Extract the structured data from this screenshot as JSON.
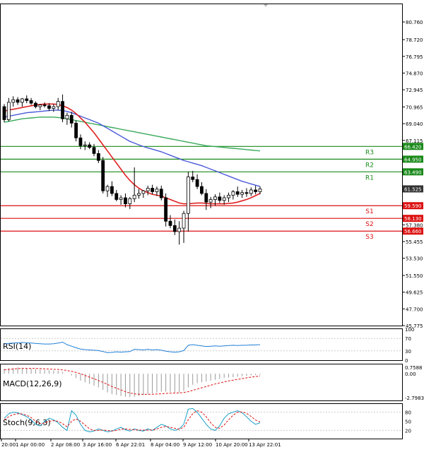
{
  "main_chart": {
    "y_min": 45.775,
    "y_max": 82.8,
    "y_ticks": [
      "80.760",
      "78.720",
      "76.795",
      "74.870",
      "72.945",
      "70.965",
      "69.040",
      "67.115",
      "65.190",
      "63.490",
      "61.525",
      "59.590",
      "57.380",
      "55.455",
      "53.530",
      "51.550",
      "49.625",
      "47.700",
      "45.775"
    ],
    "last_price": {
      "value": 61.525,
      "label": "61.525",
      "color": "#333333"
    },
    "levels": [
      {
        "name": "R3",
        "value": 66.42,
        "label": "66.420",
        "color": "#1a8a1a"
      },
      {
        "name": "R2",
        "value": 64.95,
        "label": "64.950",
        "color": "#1a8a1a"
      },
      {
        "name": "R1",
        "value": 63.49,
        "label": "63.490",
        "color": "#1a8a1a"
      },
      {
        "name": "S1",
        "value": 59.59,
        "label": "59.590",
        "color": "#dd1111"
      },
      {
        "name": "S2",
        "value": 58.13,
        "label": "58.130",
        "color": "#dd1111"
      },
      {
        "name": "S3",
        "value": 56.66,
        "label": "56.660",
        "color": "#dd1111"
      }
    ],
    "candles": [
      [
        71.0,
        71.3,
        69.2,
        69.5
      ],
      [
        69.5,
        72.0,
        69.3,
        71.5
      ],
      [
        71.5,
        72.2,
        71.0,
        71.8
      ],
      [
        71.8,
        72.1,
        71.2,
        71.5
      ],
      [
        71.5,
        72.0,
        71.0,
        71.9
      ],
      [
        71.9,
        72.3,
        71.4,
        71.7
      ],
      [
        71.7,
        72.0,
        71.2,
        71.4
      ],
      [
        71.4,
        71.6,
        70.8,
        71.0
      ],
      [
        71.0,
        71.3,
        70.6,
        71.2
      ],
      [
        71.2,
        71.5,
        70.9,
        71.1
      ],
      [
        71.1,
        71.4,
        70.5,
        70.8
      ],
      [
        70.8,
        71.3,
        70.4,
        71.0
      ],
      [
        71.0,
        72.0,
        70.6,
        71.6
      ],
      [
        71.6,
        72.4,
        69.2,
        69.6
      ],
      [
        69.6,
        70.3,
        68.9,
        70.0
      ],
      [
        70.0,
        70.4,
        68.6,
        69.1
      ],
      [
        69.1,
        69.4,
        67.0,
        67.4
      ],
      [
        67.4,
        67.8,
        66.1,
        66.5
      ],
      [
        66.5,
        67.0,
        66.0,
        66.6
      ],
      [
        66.6,
        66.9,
        66.1,
        66.3
      ],
      [
        66.3,
        66.7,
        65.3,
        65.6
      ],
      [
        65.6,
        66.0,
        64.5,
        64.8
      ],
      [
        64.8,
        65.2,
        61.0,
        61.3
      ],
      [
        61.3,
        62.0,
        60.6,
        61.8
      ],
      [
        61.8,
        62.4,
        60.7,
        61.0
      ],
      [
        61.0,
        61.4,
        60.1,
        60.3
      ],
      [
        60.3,
        60.8,
        59.7,
        60.5
      ],
      [
        60.5,
        61.0,
        59.4,
        59.8
      ],
      [
        59.8,
        60.6,
        59.2,
        60.4
      ],
      [
        60.4,
        64.0,
        60.0,
        60.8
      ],
      [
        60.8,
        61.5,
        60.4,
        61.0
      ],
      [
        61.0,
        61.4,
        60.5,
        61.3
      ],
      [
        61.3,
        61.9,
        60.8,
        61.6
      ],
      [
        61.6,
        62.0,
        60.9,
        61.2
      ],
      [
        61.2,
        61.8,
        60.7,
        61.5
      ],
      [
        61.5,
        61.9,
        60.2,
        60.5
      ],
      [
        60.5,
        61.0,
        57.2,
        57.8
      ],
      [
        57.8,
        58.5,
        57.0,
        57.3
      ],
      [
        57.3,
        58.0,
        56.2,
        56.6
      ],
      [
        56.6,
        57.8,
        55.1,
        57.0
      ],
      [
        57.0,
        59.0,
        55.3,
        58.7
      ],
      [
        58.7,
        63.5,
        56.6,
        62.9
      ],
      [
        62.9,
        63.6,
        62.3,
        62.6
      ],
      [
        62.6,
        63.2,
        61.5,
        61.8
      ],
      [
        61.8,
        62.3,
        60.8,
        61.0
      ],
      [
        61.0,
        61.5,
        59.1,
        60.0
      ],
      [
        60.0,
        60.6,
        59.3,
        60.3
      ],
      [
        60.3,
        60.9,
        59.6,
        60.6
      ],
      [
        60.6,
        61.1,
        59.9,
        60.2
      ],
      [
        60.2,
        60.8,
        59.7,
        60.5
      ],
      [
        60.5,
        61.1,
        60.0,
        60.8
      ],
      [
        60.8,
        61.4,
        60.3,
        61.2
      ],
      [
        61.2,
        61.8,
        60.6,
        60.9
      ],
      [
        60.9,
        61.4,
        60.5,
        61.1
      ],
      [
        61.1,
        61.6,
        60.6,
        61.0
      ],
      [
        61.0,
        61.7,
        60.7,
        61.4
      ],
      [
        61.4,
        61.9,
        60.9,
        61.2
      ],
      [
        61.2,
        61.8,
        60.9,
        61.525
      ]
    ],
    "ma_blue": [
      69.8,
      69.9,
      70.0,
      70.1,
      70.2,
      70.3,
      70.35,
      70.4,
      70.45,
      70.5,
      70.55,
      70.6,
      70.6,
      70.55,
      70.45,
      70.3,
      70.1,
      69.9,
      69.7,
      69.5,
      69.3,
      69.1,
      68.8,
      68.5,
      68.2,
      67.9,
      67.6,
      67.3,
      67.0,
      66.8,
      66.6,
      66.4,
      66.25,
      66.1,
      65.95,
      65.8,
      65.6,
      65.4,
      65.2,
      65.0,
      64.8,
      64.65,
      64.5,
      64.35,
      64.2,
      64.0,
      63.8,
      63.6,
      63.4,
      63.2,
      63.0,
      62.8,
      62.6,
      62.4,
      62.25,
      62.1,
      61.95,
      61.8
    ],
    "ma_green": [
      69.2,
      69.3,
      69.4,
      69.5,
      69.6,
      69.65,
      69.7,
      69.75,
      69.8,
      69.8,
      69.8,
      69.8,
      69.75,
      69.7,
      69.6,
      69.5,
      69.4,
      69.3,
      69.2,
      69.1,
      69.0,
      68.9,
      68.8,
      68.7,
      68.6,
      68.5,
      68.4,
      68.3,
      68.2,
      68.1,
      68.0,
      67.9,
      67.8,
      67.7,
      67.6,
      67.5,
      67.4,
      67.3,
      67.2,
      67.1,
      67.0,
      66.9,
      66.8,
      66.7,
      66.6,
      66.5,
      66.45,
      66.4,
      66.35,
      66.3,
      66.25,
      66.2,
      66.15,
      66.1,
      66.05,
      66.0,
      65.95,
      65.9
    ],
    "ma_red": [
      70.5,
      70.6,
      70.7,
      70.8,
      70.9,
      71.0,
      71.1,
      71.2,
      71.25,
      71.3,
      71.3,
      71.3,
      71.25,
      71.1,
      70.9,
      70.6,
      70.2,
      69.7,
      69.2,
      68.6,
      68.0,
      67.3,
      66.6,
      65.9,
      65.2,
      64.5,
      63.8,
      63.1,
      62.5,
      62.0,
      61.6,
      61.3,
      61.1,
      60.9,
      60.8,
      60.7,
      60.5,
      60.3,
      60.1,
      59.9,
      59.8,
      59.8,
      59.85,
      59.9,
      59.9,
      59.85,
      59.8,
      59.8,
      59.8,
      59.8,
      59.85,
      59.9,
      60.0,
      60.15,
      60.3,
      60.5,
      60.75,
      61.0
    ]
  },
  "x_axis": {
    "labels": [
      "20:00",
      "1 Apr 00:00",
      "2 Apr 08:00",
      "3 Apr 16:00",
      "6 Apr 22:01",
      "8 Apr 04:00",
      "9 Apr 12:00",
      "10 Apr 20:00",
      "13 Apr 22:01"
    ]
  },
  "rsi": {
    "name": "RSI(14)",
    "ticks": [
      "100",
      "70",
      "30",
      "0"
    ],
    "color": "#1e7fd6",
    "values": [
      52,
      54,
      55,
      56,
      57,
      56,
      55,
      54,
      53,
      52,
      52,
      53,
      55,
      58,
      50,
      45,
      40,
      36,
      34,
      33,
      32,
      31,
      28,
      24,
      25,
      27,
      26,
      27,
      28,
      35,
      34,
      33,
      35,
      33,
      34,
      32,
      29,
      27,
      26,
      27,
      31,
      48,
      50,
      48,
      46,
      44,
      45,
      46,
      45,
      46,
      47,
      48,
      47,
      48,
      48,
      49,
      49,
      50
    ]
  },
  "macd": {
    "name": "MACD(12,26,9)",
    "ticks": [
      "0.7588",
      "0.00",
      "-2.7983"
    ],
    "hist": [
      0.6,
      0.65,
      0.7,
      0.75,
      0.7,
      0.65,
      0.6,
      0.55,
      0.5,
      0.45,
      0.4,
      0.38,
      0.35,
      0.2,
      0.0,
      -0.2,
      -0.5,
      -0.8,
      -1.0,
      -1.2,
      -1.4,
      -1.6,
      -1.9,
      -2.2,
      -2.4,
      -2.5,
      -2.6,
      -2.7,
      -2.75,
      -2.7,
      -2.6,
      -2.5,
      -2.4,
      -2.3,
      -2.2,
      -2.1,
      -2.1,
      -2.15,
      -2.2,
      -2.2,
      -2.0,
      -1.6,
      -1.3,
      -1.1,
      -1.0,
      -0.9,
      -0.8,
      -0.7,
      -0.6,
      -0.5,
      -0.45,
      -0.4,
      -0.35,
      -0.3,
      -0.25,
      -0.2,
      -0.15,
      -0.1
    ],
    "signal": [
      0.45,
      0.5,
      0.55,
      0.6,
      0.62,
      0.63,
      0.63,
      0.62,
      0.6,
      0.58,
      0.55,
      0.52,
      0.5,
      0.45,
      0.38,
      0.28,
      0.15,
      0.0,
      -0.2,
      -0.4,
      -0.6,
      -0.8,
      -1.0,
      -1.25,
      -1.5,
      -1.7,
      -1.9,
      -2.1,
      -2.25,
      -2.35,
      -2.4,
      -2.42,
      -2.42,
      -2.4,
      -2.38,
      -2.35,
      -2.3,
      -2.28,
      -2.26,
      -2.25,
      -2.2,
      -2.1,
      -1.95,
      -1.8,
      -1.65,
      -1.5,
      -1.35,
      -1.2,
      -1.08,
      -0.95,
      -0.85,
      -0.75,
      -0.66,
      -0.57,
      -0.48,
      -0.4,
      -0.33,
      -0.26
    ],
    "signal_color": "#d11"
  },
  "stoch": {
    "name": "Stoch(9,6,3)",
    "ticks": [
      "80",
      "50",
      "20"
    ],
    "k_color": "#1aa0c8",
    "d_color": "#d11",
    "k": [
      60,
      75,
      80,
      78,
      72,
      65,
      55,
      40,
      35,
      50,
      60,
      55,
      45,
      30,
      20,
      85,
      70,
      40,
      20,
      15,
      18,
      25,
      20,
      15,
      18,
      25,
      30,
      22,
      18,
      25,
      20,
      18,
      25,
      20,
      30,
      40,
      35,
      25,
      20,
      25,
      40,
      90,
      92,
      80,
      60,
      40,
      25,
      20,
      35,
      60,
      75,
      80,
      85,
      78,
      65,
      50,
      40,
      45
    ],
    "d": [
      55,
      65,
      72,
      75,
      74,
      70,
      62,
      50,
      42,
      44,
      50,
      52,
      50,
      42,
      32,
      50,
      58,
      50,
      38,
      25,
      20,
      20,
      21,
      20,
      18,
      20,
      24,
      25,
      23,
      22,
      21,
      21,
      21,
      21,
      25,
      30,
      33,
      30,
      27,
      24,
      30,
      55,
      75,
      85,
      80,
      65,
      45,
      30,
      27,
      38,
      55,
      70,
      80,
      81,
      76,
      66,
      54,
      48
    ]
  }
}
